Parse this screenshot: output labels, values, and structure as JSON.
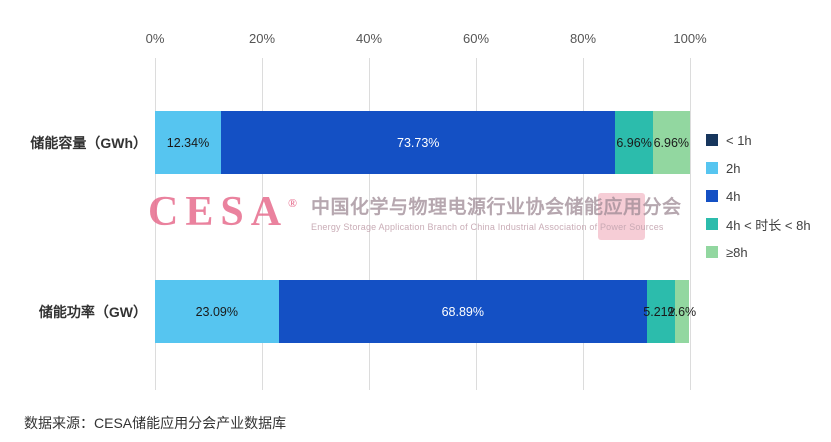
{
  "chart_data": {
    "type": "bar",
    "variant": "horizontal-100-stacked",
    "x_ticks": [
      "0%",
      "20%",
      "40%",
      "60%",
      "80%",
      "100%"
    ],
    "xlim": [
      0,
      100
    ],
    "grid": "vertical",
    "legend_position": "right",
    "categories": [
      "储能容量（GWh）",
      "储能功率（GW）"
    ],
    "series": [
      {
        "name": "< 1h",
        "color": "#17365D",
        "label_color": "#ffffff",
        "values": [
          0,
          0
        ],
        "labels": [
          "",
          ""
        ]
      },
      {
        "name": "2h",
        "color": "#56C5F0",
        "label_color": "#1a1a1a",
        "values": [
          12.34,
          23.09
        ],
        "labels": [
          "12.34%",
          "23.09%"
        ]
      },
      {
        "name": "4h",
        "color": "#1450C4",
        "label_color": "#ffffff",
        "values": [
          73.73,
          68.89
        ],
        "labels": [
          "73.73%",
          "68.89%"
        ]
      },
      {
        "name": "4h < 时长 < 8h",
        "color": "#2CBCAC",
        "label_color": "#1a1a1a",
        "values": [
          6.96,
          5.21
        ],
        "labels": [
          "6.96%",
          "5.21%"
        ]
      },
      {
        "name": "≥8h",
        "color": "#92D7A0",
        "label_color": "#1a1a1a",
        "values": [
          6.96,
          2.6
        ],
        "labels": [
          "6.96%",
          "2.6%"
        ]
      }
    ],
    "source": "数据来源：CESA储能应用分会产业数据库"
  },
  "watermark": {
    "logo": "CESA",
    "registered": "®",
    "title_cn": "中国化学与物理电源行业协会储能应用分会",
    "title_en": "Energy Storage Application Branch of China Industrial Association of Power Sources"
  }
}
